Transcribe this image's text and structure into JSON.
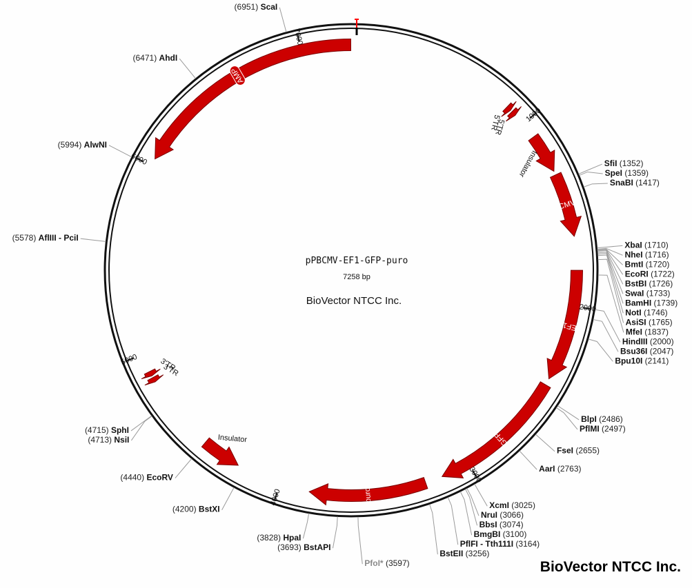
{
  "plasmid": {
    "name": "pPBCMV-EF1-GFP-puro",
    "length_bp": 7258,
    "length_label": "7258 bp",
    "company_center": "BioVector NTCC Inc.",
    "company_corner": "BioVector NTCC Inc."
  },
  "colors": {
    "feature": "#cc0000",
    "backbone": "#111111",
    "leader": "#9a9a9a",
    "marker": "#ff0000"
  },
  "ticks": [
    {
      "bp": 1000,
      "label": "1000"
    },
    {
      "bp": 2000,
      "label": "2000"
    },
    {
      "bp": 3000,
      "label": "3000"
    },
    {
      "bp": 4000,
      "label": "4000"
    },
    {
      "bp": 5000,
      "label": "5000"
    },
    {
      "bp": 6000,
      "label": "6000"
    },
    {
      "bp": 7000,
      "label": "7000"
    }
  ],
  "features": [
    {
      "name": "AMP",
      "start": 6040,
      "end": 7256,
      "direction": "reverse",
      "label_style": "inner-box"
    },
    {
      "name": "5'TR",
      "start": 880,
      "end": 905,
      "direction": "forward",
      "label_style": "outside"
    },
    {
      "name": "5'TR",
      "start": 915,
      "end": 940,
      "direction": "forward",
      "label_style": "outside"
    },
    {
      "name": "Insulator",
      "start": 1085,
      "end": 1290,
      "direction": "forward",
      "label_style": "outside"
    },
    {
      "name": "CMV",
      "start": 1310,
      "end": 1640,
      "direction": "forward",
      "label_style": "inner"
    },
    {
      "name": "EF1",
      "start": 1815,
      "end": 2395,
      "direction": "forward",
      "label_style": "inner"
    },
    {
      "name": "GFP",
      "start": 2430,
      "end": 3150,
      "direction": "forward",
      "label_style": "inner"
    },
    {
      "name": "puro",
      "start": 3240,
      "end": 3845,
      "direction": "forward",
      "label_style": "inner"
    },
    {
      "name": "Insulator",
      "start": 4235,
      "end": 4440,
      "direction": "reverse",
      "label_style": "outside"
    },
    {
      "name": "3'TR",
      "start": 4845,
      "end": 4870,
      "direction": "reverse",
      "label_style": "outside"
    },
    {
      "name": "3'TR",
      "start": 4880,
      "end": 4905,
      "direction": "reverse",
      "label_style": "outside"
    }
  ],
  "sites": [
    {
      "name": "ScaI",
      "pos": 6951,
      "pos_label": "(6951)",
      "bp": 6951,
      "side": "left"
    },
    {
      "name": "AhdI",
      "pos": 6471,
      "pos_label": "(6471)",
      "bp": 6471,
      "side": "left"
    },
    {
      "name": "AlwNI",
      "pos": 5994,
      "pos_label": "(5994)",
      "bp": 5994,
      "side": "left"
    },
    {
      "name": "AflIII - PciI",
      "pos": 5578,
      "pos_label": "(5578)",
      "bp": 5578,
      "side": "left"
    },
    {
      "name": "SphI",
      "pos": 4715,
      "pos_label": "(4715)",
      "bp": 4715,
      "side": "left"
    },
    {
      "name": "NsiI",
      "pos": 4713,
      "pos_label": "(4713)",
      "bp": 4713,
      "side": "left"
    },
    {
      "name": "EcoRV",
      "pos": 4440,
      "pos_label": "(4440)",
      "bp": 4440,
      "side": "left"
    },
    {
      "name": "BstXI",
      "pos": 4200,
      "pos_label": "(4200)",
      "bp": 4200,
      "side": "left"
    },
    {
      "name": "HpaI",
      "pos": 3828,
      "pos_label": "(3828)",
      "bp": 3828,
      "side": "left"
    },
    {
      "name": "BstAPI",
      "pos": 3693,
      "pos_label": "(3693)",
      "bp": 3693,
      "side": "left"
    },
    {
      "name": "PfoI*",
      "pos": 3597,
      "pos_label": "(3597)",
      "bp": 3597,
      "side": "right",
      "grey": true
    },
    {
      "name": "BstEII",
      "pos": 3256,
      "pos_label": "(3256)",
      "bp": 3256,
      "side": "right"
    },
    {
      "name": "PflFI - Tth111I",
      "pos": 3164,
      "pos_label": "(3164)",
      "bp": 3164,
      "side": "right"
    },
    {
      "name": "BmgBI",
      "pos": 3100,
      "pos_label": "(3100)",
      "bp": 3100,
      "side": "right"
    },
    {
      "name": "BbsI",
      "pos": 3074,
      "pos_label": "(3074)",
      "bp": 3074,
      "side": "right"
    },
    {
      "name": "NruI",
      "pos": 3066,
      "pos_label": "(3066)",
      "bp": 3066,
      "side": "right"
    },
    {
      "name": "XcmI",
      "pos": 3025,
      "pos_label": "(3025)",
      "bp": 3025,
      "side": "right"
    },
    {
      "name": "AarI",
      "pos": 2763,
      "pos_label": "(2763)",
      "bp": 2763,
      "side": "right"
    },
    {
      "name": "FseI",
      "pos": 2655,
      "pos_label": "(2655)",
      "bp": 2655,
      "side": "right"
    },
    {
      "name": "PflMI",
      "pos": 2497,
      "pos_label": "(2497)",
      "bp": 2497,
      "side": "right"
    },
    {
      "name": "BlpI",
      "pos": 2486,
      "pos_label": "(2486)",
      "bp": 2486,
      "side": "right"
    },
    {
      "name": "Bpu10I",
      "pos": 2141,
      "pos_label": "(2141)",
      "bp": 2141,
      "side": "right"
    },
    {
      "name": "Bsu36I",
      "pos": 2047,
      "pos_label": "(2047)",
      "bp": 2047,
      "side": "right"
    },
    {
      "name": "HindIII",
      "pos": 2000,
      "pos_label": "(2000)",
      "bp": 2000,
      "side": "right"
    },
    {
      "name": "MfeI",
      "pos": 1837,
      "pos_label": "(1837)",
      "bp": 1837,
      "side": "right"
    },
    {
      "name": "AsiSI",
      "pos": 1765,
      "pos_label": "(1765)",
      "bp": 1765,
      "side": "right"
    },
    {
      "name": "NotI",
      "pos": 1746,
      "pos_label": "(1746)",
      "bp": 1746,
      "side": "right"
    },
    {
      "name": "BamHI",
      "pos": 1739,
      "pos_label": "(1739)",
      "bp": 1739,
      "side": "right"
    },
    {
      "name": "SwaI",
      "pos": 1733,
      "pos_label": "(1733)",
      "bp": 1733,
      "side": "right"
    },
    {
      "name": "BstBI",
      "pos": 1726,
      "pos_label": "(1726)",
      "bp": 1726,
      "side": "right"
    },
    {
      "name": "EcoRI",
      "pos": 1722,
      "pos_label": "(1722)",
      "bp": 1722,
      "side": "right"
    },
    {
      "name": "BmtI",
      "pos": 1720,
      "pos_label": "(1720)",
      "bp": 1720,
      "side": "right"
    },
    {
      "name": "NheI",
      "pos": 1716,
      "pos_label": "(1716)",
      "bp": 1716,
      "side": "right"
    },
    {
      "name": "XbaI",
      "pos": 1710,
      "pos_label": "(1710)",
      "bp": 1710,
      "side": "right"
    },
    {
      "name": "SnaBI",
      "pos": 1417,
      "pos_label": "(1417)",
      "bp": 1417,
      "side": "right"
    },
    {
      "name": "SpeI",
      "pos": 1359,
      "pos_label": "(1359)",
      "bp": 1359,
      "side": "right"
    },
    {
      "name": "SfiI",
      "pos": 1352,
      "pos_label": "(1352)",
      "bp": 1352,
      "side": "right"
    }
  ]
}
